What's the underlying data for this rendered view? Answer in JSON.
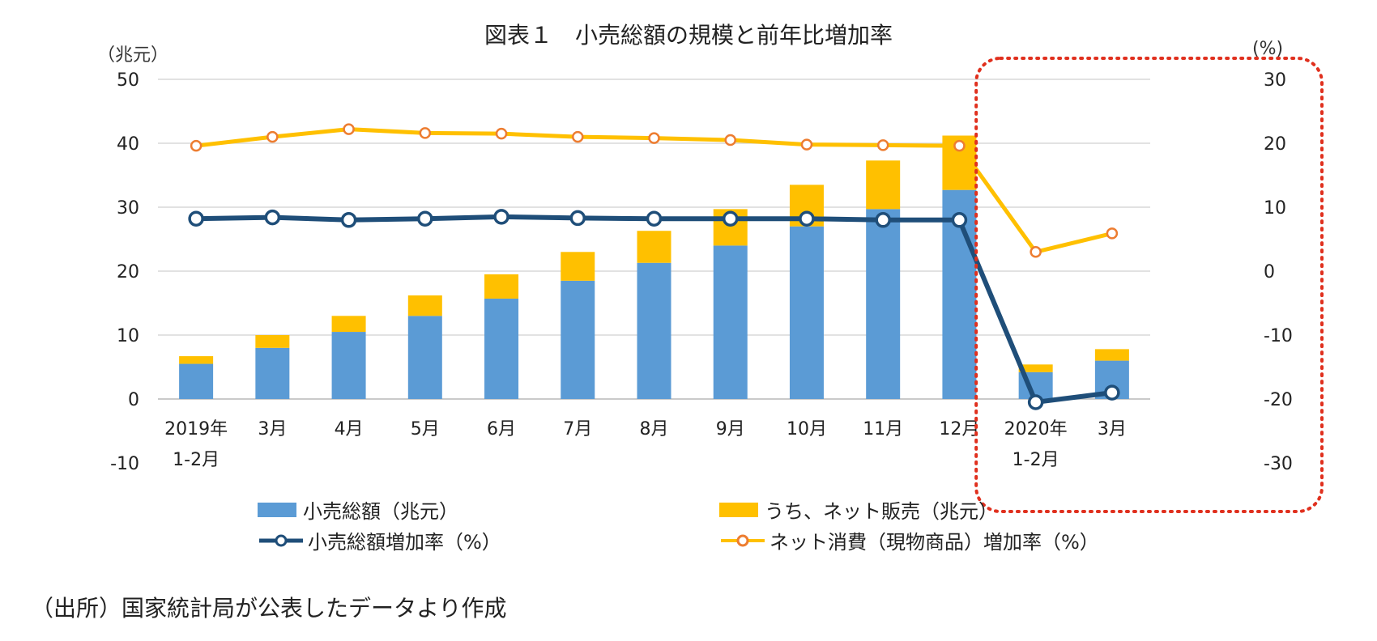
{
  "chart_data": {
    "type": "bar+line",
    "title": "図表１　小売総額の規模と前年比増加率",
    "left_axis_unit": "（兆元）",
    "right_axis_unit": "(%)",
    "categories": [
      {
        "line1": "2019年",
        "line2": "1-2月"
      },
      {
        "line1": "3月",
        "line2": ""
      },
      {
        "line1": "4月",
        "line2": ""
      },
      {
        "line1": "5月",
        "line2": ""
      },
      {
        "line1": "6月",
        "line2": ""
      },
      {
        "line1": "7月",
        "line2": ""
      },
      {
        "line1": "8月",
        "line2": ""
      },
      {
        "line1": "9月",
        "line2": ""
      },
      {
        "line1": "10月",
        "line2": ""
      },
      {
        "line1": "11月",
        "line2": ""
      },
      {
        "line1": "12月",
        "line2": ""
      },
      {
        "line1": "2020年",
        "line2": "1-2月"
      },
      {
        "line1": "3月",
        "line2": ""
      }
    ],
    "left_axis": {
      "min": -10,
      "max": 50,
      "ticks": [
        50,
        40,
        30,
        20,
        10,
        0,
        -10
      ]
    },
    "right_axis": {
      "min": -30,
      "max": 30,
      "ticks": [
        30,
        20,
        10,
        0,
        -10,
        -20,
        -30
      ]
    },
    "series": [
      {
        "name": "小売総額（兆元）",
        "type": "bar",
        "axis": "left",
        "color": "#5b9bd5",
        "values": [
          5.5,
          8.0,
          10.5,
          13.0,
          15.7,
          18.5,
          21.3,
          24.0,
          27.0,
          29.7,
          32.7,
          4.2,
          6.0
        ]
      },
      {
        "name": "うち、ネット販売（兆元）",
        "type": "bar-stack",
        "axis": "left",
        "color": "#ffc000",
        "values": [
          1.2,
          2.0,
          2.5,
          3.2,
          3.8,
          4.5,
          5.0,
          5.7,
          6.5,
          7.6,
          8.5,
          1.2,
          1.8
        ]
      },
      {
        "name": "小売総額増加率（%）",
        "type": "line",
        "axis": "right",
        "color": "#1f4e79",
        "values": [
          8.2,
          8.4,
          8.0,
          8.2,
          8.5,
          8.3,
          8.2,
          8.2,
          8.2,
          8.0,
          8.0,
          -20.5,
          -19.0
        ]
      },
      {
        "name": "ネット消費（現物商品）増加率（%）",
        "type": "line",
        "axis": "right",
        "color": "#ffc000",
        "marker_color": "#ed7d31",
        "values": [
          19.6,
          21.0,
          22.2,
          21.6,
          21.5,
          21.0,
          20.8,
          20.5,
          19.8,
          19.7,
          19.6,
          3.0,
          5.9
        ]
      }
    ],
    "highlight": {
      "from_category_index": 11,
      "to_category_index": 12,
      "color": "#e0301e",
      "style": "dotted rounded box"
    },
    "legend_position": "bottom"
  },
  "source_note": "（出所）国家統計局が公表したデータより作成"
}
